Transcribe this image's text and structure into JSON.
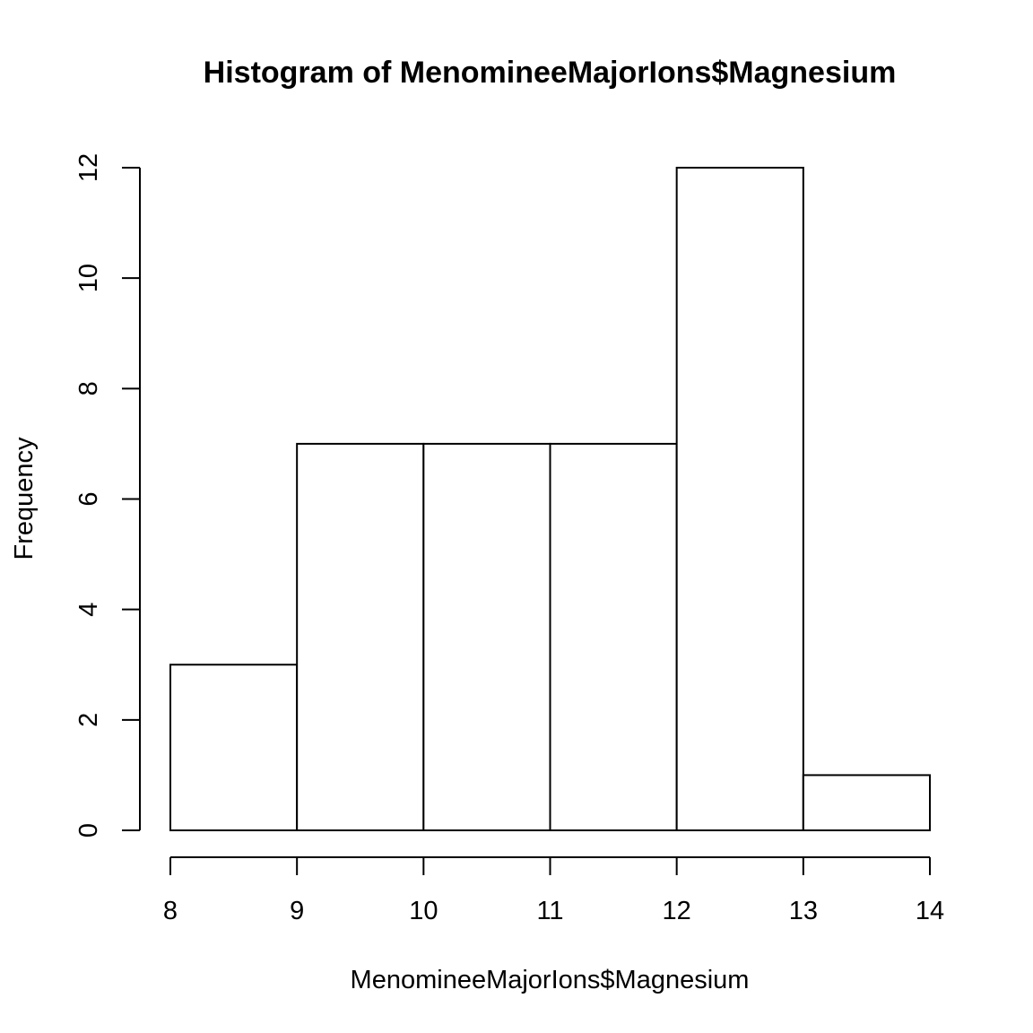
{
  "chart_data": {
    "type": "bar",
    "title": "Histogram of MenomineeMajorIons$Magnesium",
    "xlabel": "MenomineeMajorIons$Magnesium",
    "ylabel": "Frequency",
    "bins": [
      {
        "start": 8,
        "end": 9,
        "count": 3
      },
      {
        "start": 9,
        "end": 10,
        "count": 7
      },
      {
        "start": 10,
        "end": 11,
        "count": 7
      },
      {
        "start": 11,
        "end": 12,
        "count": 7
      },
      {
        "start": 12,
        "end": 13,
        "count": 12
      },
      {
        "start": 13,
        "end": 14,
        "count": 1
      }
    ],
    "xticks": [
      8,
      9,
      10,
      11,
      12,
      13,
      14
    ],
    "yticks": [
      0,
      2,
      4,
      6,
      8,
      10,
      12
    ],
    "xlim": [
      8,
      14
    ],
    "ylim": [
      0,
      12
    ],
    "grid": false,
    "bar_fill": "#ffffff",
    "bar_stroke": "#000000"
  }
}
